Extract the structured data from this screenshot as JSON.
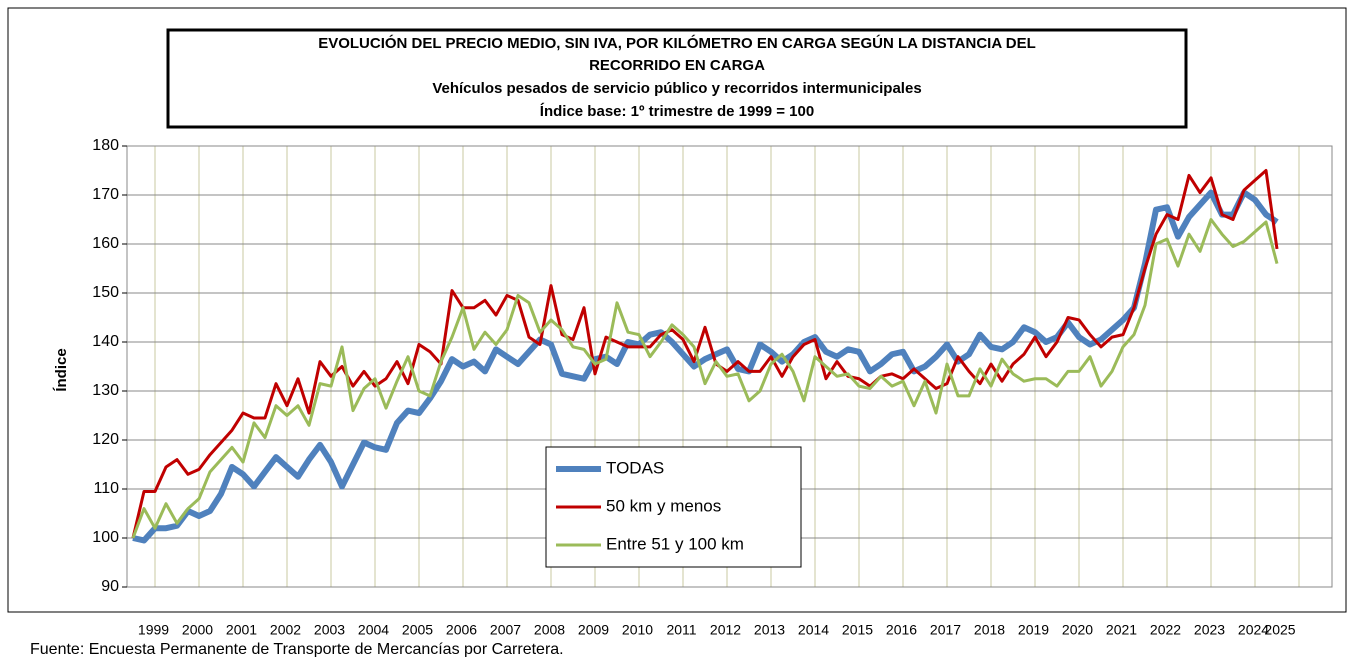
{
  "chart_data": {
    "type": "line",
    "title": [
      "EVOLUCIÓN  DEL PRECIO MEDIO, SIN IVA, POR KILÓMETRO  EN CARGA  SEGÚN LA DISTANCIA  DEL",
      "RECORRIDO  EN CARGA",
      "Vehículos pesados de servicio público  y recorridos intermunicipales",
      "Índice base: 1º trimestre de 1999 = 100"
    ],
    "y_label": "Índice",
    "source": "Fuente: Encuesta Permanente de Transporte de Mercancías por Carretera.",
    "categories": [
      "1999",
      null,
      null,
      null,
      "2000",
      null,
      null,
      null,
      "2001",
      null,
      null,
      null,
      "2002",
      null,
      null,
      null,
      "2003",
      null,
      null,
      null,
      "2004",
      null,
      null,
      null,
      "2005",
      null,
      null,
      null,
      "2006",
      null,
      null,
      null,
      "2007",
      null,
      null,
      null,
      "2008",
      null,
      null,
      null,
      "2009",
      null,
      null,
      null,
      "2010",
      null,
      null,
      null,
      "2011",
      null,
      null,
      null,
      "2012",
      null,
      null,
      null,
      "2013",
      null,
      null,
      null,
      "2014",
      null,
      null,
      null,
      "2015",
      null,
      null,
      null,
      "2016",
      null,
      null,
      null,
      "2017",
      null,
      null,
      null,
      "2018",
      null,
      null,
      null,
      "2019",
      null,
      null,
      null,
      "2020",
      null,
      null,
      null,
      "2021",
      null,
      null,
      null,
      "2022",
      null,
      null,
      null,
      "2023",
      null,
      null,
      null,
      "2024",
      null,
      null,
      null,
      "2025"
    ],
    "ylim": [
      90,
      180
    ],
    "yticks": [
      90,
      100,
      110,
      120,
      130,
      140,
      150,
      160,
      170,
      180
    ],
    "grid": true,
    "legend": "center",
    "series": [
      {
        "name": "TODAS",
        "color": "#4f81bd",
        "width": 6,
        "values": [
          100,
          99.5,
          102,
          102,
          102.5,
          105.5,
          104.5,
          105.5,
          109,
          114.5,
          113,
          110.5,
          113.5,
          116.5,
          114.5,
          112.5,
          116,
          119,
          115.5,
          110.5,
          115,
          119.5,
          118.5,
          118,
          123.5,
          126,
          125.5,
          128.5,
          132,
          136.5,
          135,
          136,
          134,
          138.5,
          137,
          135.5,
          138,
          140.5,
          139.5,
          133.5,
          133,
          132.5,
          136.5,
          137,
          135.5,
          140,
          139.5,
          141.5,
          142,
          140,
          137.5,
          135,
          136.5,
          137.5,
          138.5,
          134.5,
          134,
          139.5,
          138,
          136,
          137.5,
          140,
          141,
          138,
          137,
          138.5,
          138,
          134,
          135.5,
          137.5,
          138,
          134,
          135,
          137,
          139.5,
          136,
          137.5,
          141.5,
          139,
          138.5,
          140,
          143,
          142,
          140,
          141,
          144,
          141,
          139.5,
          140.5,
          142.5,
          144.5,
          147,
          156,
          167,
          167.5,
          161.5,
          165.5,
          168,
          170.5,
          166,
          166,
          170.5,
          169,
          166,
          164.5
        ]
      },
      {
        "name": "50 km y menos",
        "color": "#c00000",
        "width": 3,
        "values": [
          100,
          109.5,
          109.5,
          114.5,
          116,
          113,
          114,
          117,
          119.5,
          122,
          125.5,
          124.5,
          124.5,
          131.5,
          127,
          132.5,
          125.5,
          136,
          133,
          135,
          131,
          134,
          131,
          132.5,
          136,
          131.5,
          139.5,
          138,
          135.5,
          150.5,
          147,
          147,
          148.5,
          145.5,
          149.5,
          148.5,
          141,
          139.5,
          151.5,
          141.5,
          140.5,
          147,
          133.5,
          141,
          140,
          139,
          139,
          139,
          141.5,
          142.5,
          140.5,
          136,
          143,
          135.5,
          134,
          136,
          134,
          134,
          137,
          133,
          137,
          139.5,
          140.5,
          132.5,
          136,
          133,
          132.5,
          131,
          133,
          133.5,
          132.5,
          134.5,
          132.5,
          130.5,
          131.5,
          137,
          134,
          131.5,
          135.5,
          132,
          135.5,
          137.5,
          141,
          137,
          140,
          145,
          144.5,
          141.5,
          139,
          141,
          141.5,
          147,
          155,
          162,
          166,
          165,
          174,
          170.5,
          173.5,
          166,
          165,
          171,
          173,
          175,
          159
        ]
      },
      {
        "name": "Entre 51 y 100 km",
        "color": "#9bbb59",
        "width": 3,
        "values": [
          100,
          106,
          102,
          107,
          103,
          106,
          108,
          113.5,
          116,
          118.5,
          115.5,
          123.5,
          120.5,
          127,
          125,
          127,
          123,
          131.5,
          131,
          139,
          126,
          130.5,
          132.5,
          126.5,
          132,
          137,
          130,
          129,
          136,
          141,
          147,
          138.5,
          142,
          139.5,
          142.5,
          149.5,
          148,
          142,
          144.5,
          142.5,
          139,
          138.5,
          135.5,
          136.5,
          148,
          142,
          141.5,
          137,
          140,
          143.5,
          141.5,
          139,
          131.5,
          136,
          133,
          133.5,
          128,
          130,
          135.5,
          137.5,
          134,
          128,
          137,
          135,
          133,
          133.5,
          131,
          130.5,
          133,
          131,
          132,
          127,
          132,
          125.5,
          135.5,
          129,
          129,
          134.5,
          131,
          136.5,
          133.5,
          132,
          132.5,
          132.5,
          131,
          134,
          134,
          137,
          131,
          134,
          139,
          141.5,
          147.5,
          160,
          161,
          155.5,
          162,
          158.5,
          165,
          162,
          159.5,
          160.5,
          162.5,
          164.5,
          156
        ]
      }
    ]
  }
}
